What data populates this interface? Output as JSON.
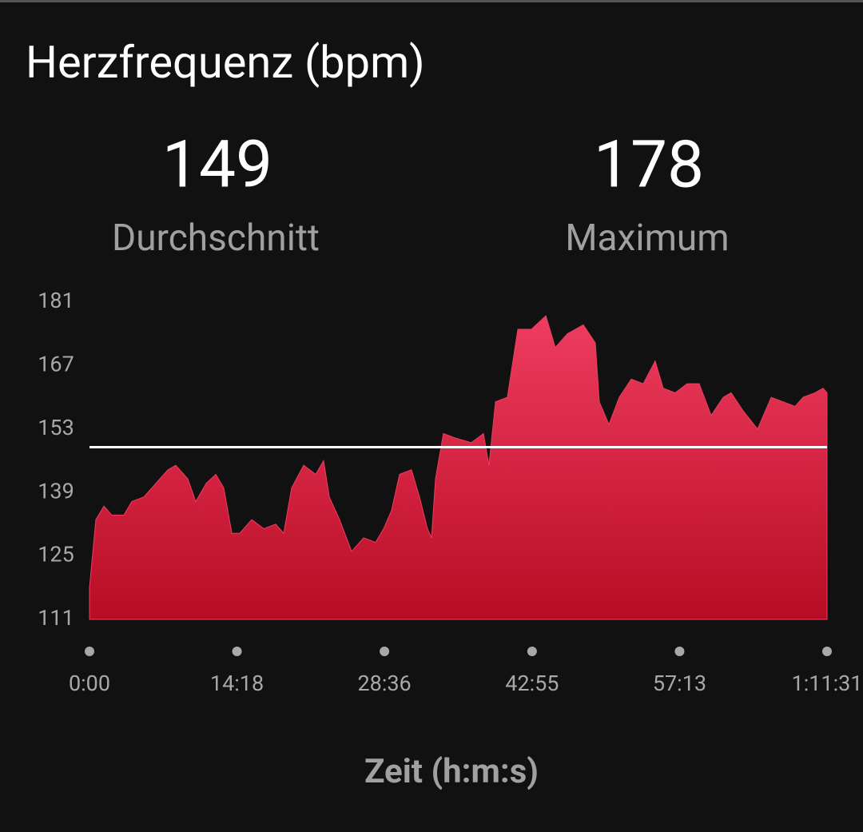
{
  "chart_data": {
    "type": "area",
    "title": "Herzfrequenz (bpm)",
    "stats": [
      {
        "value": 149,
        "label": "Durchschnitt"
      },
      {
        "value": 178,
        "label": "Maximum"
      }
    ],
    "x_label": "Zeit (h:m:s)",
    "x": [
      0,
      37,
      84,
      130,
      200,
      246,
      316,
      386,
      456,
      502,
      572,
      618,
      679,
      735,
      781,
      828,
      874,
      944,
      1014,
      1083,
      1130,
      1176,
      1246,
      1316,
      1362,
      1395,
      1455,
      1525,
      1595,
      1664,
      1711,
      1757,
      1804,
      1873,
      1920,
      1966,
      1990,
      2013,
      2059,
      2129,
      2222,
      2292,
      2324,
      2362,
      2431,
      2492,
      2571,
      2655,
      2710,
      2780,
      2873,
      2943,
      2966,
      3022,
      3082,
      3152,
      3222,
      3291,
      3338,
      3408,
      3477,
      3547,
      3617,
      3687,
      3733,
      3803,
      3887,
      3966,
      4035,
      4105,
      4152,
      4221,
      4268,
      4291
    ],
    "values": [
      118,
      133,
      136,
      134,
      134,
      137,
      138,
      141,
      144,
      145,
      142,
      137,
      141,
      143,
      140,
      130,
      130,
      133,
      131,
      132,
      130,
      140,
      145,
      143,
      146,
      138,
      133,
      126,
      129,
      128,
      131,
      135,
      143,
      144,
      138,
      131,
      129,
      142,
      152,
      151,
      150,
      152,
      145,
      159,
      160,
      175,
      175,
      178,
      171,
      174,
      176,
      172,
      159,
      154,
      160,
      164,
      163,
      168,
      162,
      161,
      163,
      163,
      156,
      160,
      161,
      157,
      153,
      160,
      159,
      158,
      160,
      161,
      162,
      161
    ],
    "color": "#ee3d60",
    "average_color": "#ffffff",
    "xlim": [
      0,
      4291
    ],
    "xticks": [
      {
        "value": 0,
        "label": "0:00"
      },
      {
        "value": 858,
        "label": "14:18"
      },
      {
        "value": 1716,
        "label": "28:36"
      },
      {
        "value": 2575,
        "label": "42:55"
      },
      {
        "value": 3433,
        "label": "57:13"
      },
      {
        "value": 4291,
        "label": "1:11:31"
      }
    ],
    "ylim": [
      111,
      181
    ],
    "yticks": [
      111,
      125,
      139,
      153,
      167,
      181
    ]
  }
}
